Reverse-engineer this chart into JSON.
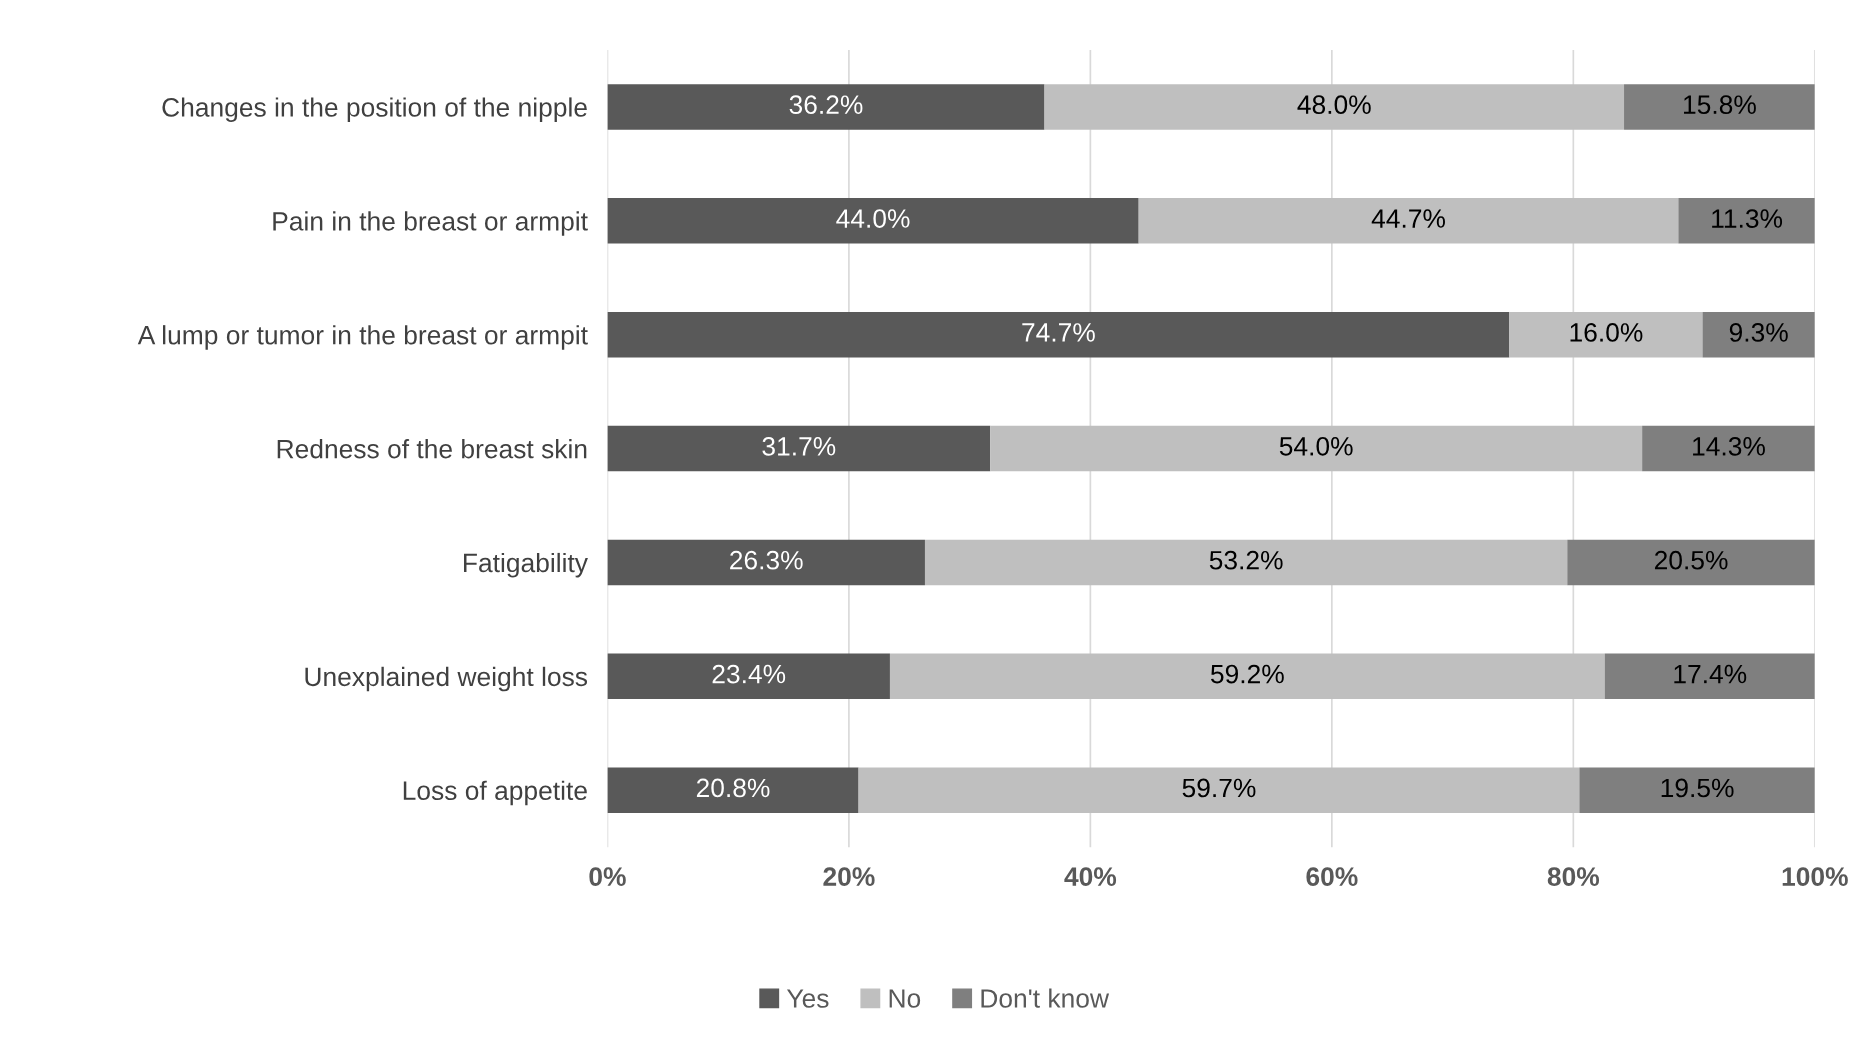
{
  "chart_data": {
    "type": "bar",
    "orientation": "horizontal",
    "stacked": true,
    "categories": [
      "Changes in the position of the nipple",
      "Pain in the breast or armpit",
      "A lump or tumor in the breast or armpit",
      "Redness of the breast skin",
      "Fatigability",
      "Unexplained weight loss",
      "Loss of appetite"
    ],
    "series": [
      {
        "name": "Yes",
        "color": "#595959",
        "values": [
          36.2,
          44.0,
          74.7,
          31.7,
          26.3,
          23.4,
          20.8
        ],
        "value_labels": [
          "36.2%",
          "44.0%",
          "74.7%",
          "31.7%",
          "26.3%",
          "23.4%",
          "20.8%"
        ]
      },
      {
        "name": "No",
        "color": "#bfbfbf",
        "values": [
          48.0,
          44.7,
          16.0,
          54.0,
          53.2,
          59.2,
          59.7
        ],
        "value_labels": [
          "48.0%",
          "44.7%",
          "16.0%",
          "54.0%",
          "53.2%",
          "59.2%",
          "59.7%"
        ]
      },
      {
        "name": "Don't know",
        "color": "#7f7f7f",
        "values": [
          15.8,
          11.3,
          9.3,
          14.3,
          20.5,
          17.4,
          19.5
        ],
        "value_labels": [
          "15.8%",
          "11.3%",
          "9.3%",
          "14.3%",
          "20.5%",
          "17.4%",
          "19.5%"
        ]
      }
    ],
    "xlim": [
      0,
      100
    ],
    "xticks": [
      {
        "value": 0,
        "label": "0%"
      },
      {
        "value": 20,
        "label": "20%"
      },
      {
        "value": 40,
        "label": "40%"
      },
      {
        "value": 60,
        "label": "60%"
      },
      {
        "value": 80,
        "label": "80%"
      },
      {
        "value": 100,
        "label": "100%"
      }
    ],
    "grid": "x",
    "legend": "bottom"
  }
}
